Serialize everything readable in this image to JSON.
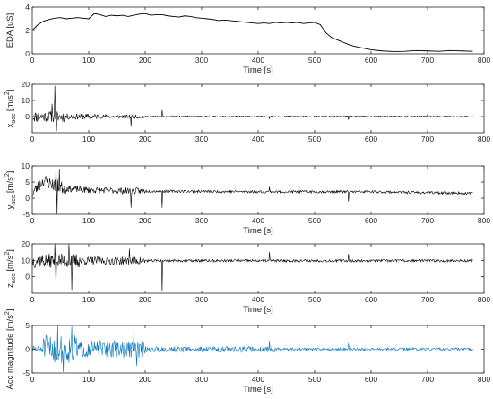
{
  "chart_data": [
    {
      "type": "line",
      "title": "",
      "ylabel": "EDA [uS]",
      "xlabel": "Time [s]",
      "color": "#000000",
      "xlim": [
        0,
        800
      ],
      "ylim": [
        0,
        4
      ],
      "xticks": [
        0,
        100,
        200,
        300,
        400,
        500,
        600,
        700,
        800
      ],
      "yticks": [
        0,
        2,
        4
      ],
      "x": [
        0,
        10,
        20,
        30,
        40,
        50,
        60,
        70,
        80,
        90,
        100,
        110,
        120,
        130,
        140,
        150,
        160,
        170,
        180,
        190,
        200,
        210,
        220,
        230,
        240,
        250,
        260,
        270,
        280,
        290,
        300,
        310,
        320,
        330,
        340,
        350,
        360,
        370,
        380,
        390,
        400,
        410,
        420,
        430,
        440,
        450,
        460,
        470,
        480,
        490,
        500,
        510,
        520,
        530,
        540,
        550,
        560,
        570,
        580,
        590,
        600,
        620,
        640,
        660,
        680,
        700,
        720,
        740,
        760,
        780
      ],
      "y": [
        2.0,
        2.5,
        2.8,
        2.95,
        3.05,
        3.1,
        3.0,
        3.05,
        3.1,
        3.05,
        3.0,
        3.45,
        3.35,
        3.2,
        3.3,
        3.25,
        3.3,
        3.2,
        3.3,
        3.4,
        3.45,
        3.3,
        3.35,
        3.35,
        3.25,
        3.2,
        3.15,
        3.25,
        3.2,
        3.1,
        3.05,
        3.0,
        2.95,
        2.85,
        2.9,
        2.85,
        2.8,
        2.75,
        2.7,
        2.65,
        2.6,
        2.65,
        2.6,
        2.7,
        2.65,
        2.7,
        2.65,
        2.7,
        2.6,
        2.65,
        2.7,
        2.5,
        1.8,
        1.4,
        1.2,
        1.0,
        0.8,
        0.65,
        0.55,
        0.45,
        0.35,
        0.25,
        0.2,
        0.22,
        0.28,
        0.25,
        0.22,
        0.28,
        0.25,
        0.22
      ]
    },
    {
      "type": "line",
      "title": "",
      "ylabel": "x",
      "ylabel_sub": "acc",
      "ylabel_unit": "[m/s",
      "ylabel_sup": "2",
      "ylabel_end": "]",
      "xlabel": "",
      "color": "#000000",
      "xlim": [
        0,
        800
      ],
      "ylim": [
        -10,
        20
      ],
      "xticks": [
        0,
        100,
        200,
        300,
        400,
        500,
        600,
        700,
        800
      ],
      "yticks": [
        0,
        10,
        20
      ],
      "noise": {
        "seed": 11,
        "base": 0.0,
        "end": 780,
        "step": 1,
        "amps": [
          [
            0,
            60,
            3.5
          ],
          [
            60,
            120,
            1.8
          ],
          [
            120,
            200,
            1.2
          ],
          [
            200,
            780,
            0.4
          ]
        ],
        "spikes": [
          [
            40,
            19
          ],
          [
            43,
            -9
          ],
          [
            35,
            8
          ],
          [
            175,
            -6
          ],
          [
            230,
            4
          ],
          [
            560,
            -2
          ],
          [
            420,
            -1.5
          ],
          [
            700,
            1.5
          ]
        ]
      }
    },
    {
      "type": "line",
      "title": "",
      "ylabel": "y",
      "ylabel_sub": "acc",
      "ylabel_unit": "[m/s",
      "ylabel_sup": "2",
      "ylabel_end": "]",
      "xlabel": "Time [s]",
      "color": "#000000",
      "xlim": [
        0,
        800
      ],
      "ylim": [
        -5,
        10
      ],
      "xticks": [
        0,
        100,
        200,
        300,
        400,
        500,
        600,
        700,
        800
      ],
      "yticks": [
        -5,
        0,
        5,
        10
      ],
      "noise": {
        "seed": 23,
        "base": 2.0,
        "end": 780,
        "step": 1,
        "trend": [
          [
            0,
            1.5
          ],
          [
            20,
            5.5
          ],
          [
            40,
            4.0
          ],
          [
            60,
            3.0
          ],
          [
            100,
            2.5
          ],
          [
            200,
            2.2
          ],
          [
            400,
            2.0
          ],
          [
            600,
            2.0
          ],
          [
            780,
            1.5
          ]
        ],
        "amps": [
          [
            0,
            60,
            2.0
          ],
          [
            60,
            200,
            1.0
          ],
          [
            200,
            780,
            0.4
          ]
        ],
        "spikes": [
          [
            42,
            13
          ],
          [
            44,
            -5
          ],
          [
            48,
            9
          ],
          [
            175,
            -3
          ],
          [
            230,
            -3
          ],
          [
            420,
            3.5
          ],
          [
            560,
            -1
          ]
        ]
      }
    },
    {
      "type": "line",
      "title": "",
      "ylabel": "z",
      "ylabel_sub": "acc",
      "ylabel_unit": "[m/s",
      "ylabel_sup": "2",
      "ylabel_end": "]",
      "xlabel": "Time [s]",
      "color": "#000000",
      "xlim": [
        0,
        800
      ],
      "ylim": [
        -10,
        20
      ],
      "xticks": [
        0,
        100,
        200,
        300,
        400,
        500,
        600,
        700,
        800
      ],
      "yticks": [
        0,
        10,
        20
      ],
      "noise": {
        "seed": 37,
        "base": 9.8,
        "end": 780,
        "step": 1,
        "amps": [
          [
            0,
            90,
            4.5
          ],
          [
            90,
            200,
            2.5
          ],
          [
            200,
            780,
            0.8
          ]
        ],
        "spikes": [
          [
            40,
            20
          ],
          [
            42,
            -6
          ],
          [
            65,
            20
          ],
          [
            70,
            -8
          ],
          [
            172,
            17
          ],
          [
            230,
            -9
          ],
          [
            420,
            15
          ],
          [
            560,
            14
          ]
        ]
      }
    },
    {
      "type": "line",
      "title": "",
      "ylabel": "Acc magnitude [m/s",
      "ylabel_sup": "2",
      "ylabel_end": "]",
      "xlabel": "Time [s]",
      "color": "#0072BD",
      "xlim": [
        0,
        800
      ],
      "ylim": [
        -5,
        5
      ],
      "xticks": [
        0,
        100,
        200,
        300,
        400,
        500,
        600,
        700,
        800
      ],
      "yticks": [
        -5,
        0,
        5
      ],
      "noise": {
        "seed": 51,
        "base": 0.0,
        "end": 780,
        "step": 1,
        "amps": [
          [
            0,
            20,
            0.8
          ],
          [
            20,
            80,
            3.0
          ],
          [
            80,
            200,
            1.8
          ],
          [
            200,
            430,
            0.6
          ],
          [
            430,
            780,
            0.3
          ]
        ],
        "spikes": [
          [
            45,
            5
          ],
          [
            55,
            -4.8
          ],
          [
            70,
            4.8
          ],
          [
            180,
            4.5
          ],
          [
            185,
            -3.5
          ],
          [
            420,
            1.8
          ],
          [
            560,
            1.2
          ]
        ]
      }
    }
  ]
}
